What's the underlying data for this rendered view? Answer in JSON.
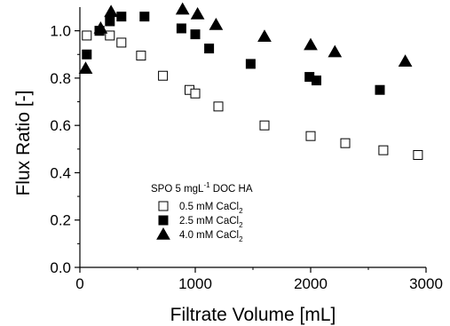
{
  "chart_data": {
    "type": "scatter",
    "xlabel": "Filtrate Volume [mL]",
    "ylabel": "Flux Ratio [-]",
    "xlim": [
      0,
      3000
    ],
    "ylim": [
      0.0,
      1.1
    ],
    "x_ticks": [
      0,
      1000,
      2000,
      3000
    ],
    "x_tick_labels": [
      "0",
      "1000",
      "2000",
      "3000"
    ],
    "y_ticks": [
      0.0,
      0.2,
      0.4,
      0.6,
      0.8,
      1.0
    ],
    "y_tick_labels": [
      "0.0",
      "0.2",
      "0.4",
      "0.6",
      "0.8",
      "1.0"
    ],
    "grid": false,
    "legend": {
      "title": "SPO 5 mgL-1 DOC HA",
      "title_parts": [
        "SPO 5 mgL",
        "-1",
        " DOC HA"
      ],
      "placement": "lower-left"
    },
    "series": [
      {
        "name": "0.5 mM CaCl2",
        "name_parts": [
          "0.5 mM CaCl",
          "2"
        ],
        "marker": "open-square",
        "x": [
          60,
          170,
          260,
          360,
          530,
          720,
          950,
          1000,
          1200,
          1600,
          2000,
          2300,
          2630,
          2930
        ],
        "y": [
          0.98,
          1.0,
          0.98,
          0.95,
          0.895,
          0.81,
          0.75,
          0.735,
          0.68,
          0.6,
          0.555,
          0.525,
          0.495,
          0.475
        ]
      },
      {
        "name": "2.5 mM CaCl2",
        "name_parts": [
          "2.5 mM CaCl",
          "2"
        ],
        "marker": "filled-square",
        "x": [
          60,
          170,
          260,
          360,
          560,
          880,
          1000,
          1120,
          1480,
          1990,
          2050,
          2600
        ],
        "y": [
          0.9,
          1.0,
          1.04,
          1.06,
          1.06,
          1.01,
          0.985,
          0.925,
          0.86,
          0.805,
          0.79,
          0.75
        ]
      },
      {
        "name": "4.0 mM CaCl2",
        "name_parts": [
          "4.0 mM CaCl",
          "2"
        ],
        "marker": "filled-triangle",
        "x": [
          50,
          180,
          270,
          890,
          1020,
          1180,
          1600,
          2000,
          2210,
          2820
        ],
        "y": [
          0.84,
          1.01,
          1.08,
          1.09,
          1.07,
          1.025,
          0.975,
          0.94,
          0.91,
          0.87
        ]
      }
    ]
  }
}
